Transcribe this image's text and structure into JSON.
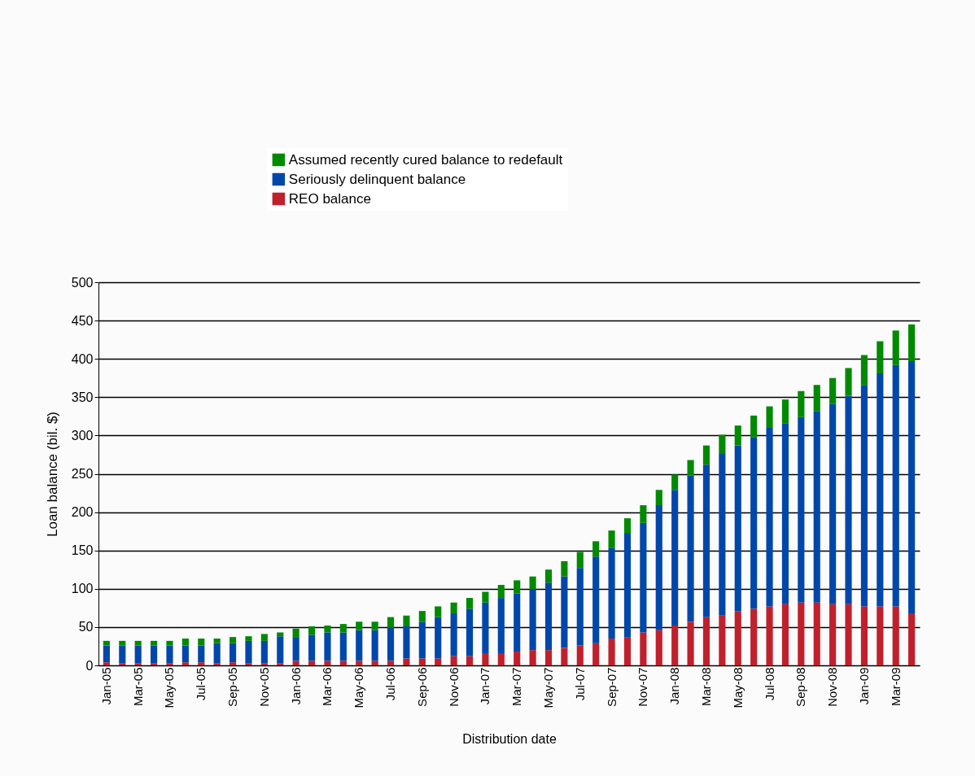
{
  "chart_data": {
    "type": "bar",
    "stacked": true,
    "xlabel": "Distribution date",
    "ylabel": "Loan balance (bil. $)",
    "categories": [
      "Jan-05",
      null,
      "Mar-05",
      null,
      "May-05",
      null,
      "Jul-05",
      null,
      "Sep-05",
      null,
      "Nov-05",
      null,
      "Jan-06",
      null,
      "Mar-06",
      null,
      "May-06",
      null,
      "Jul-06",
      null,
      "Sep-06",
      null,
      "Nov-06",
      null,
      "Jan-07",
      null,
      "Mar-07",
      null,
      "May-07",
      null,
      "Jul-07",
      null,
      "Sep-07",
      null,
      "Nov-07",
      null,
      "Jan-08",
      null,
      "Mar-08",
      null,
      "May-08",
      null,
      "Jul-08",
      null,
      "Sep-08",
      null,
      "Nov-08",
      null,
      "Jan-09",
      null,
      "Mar-09",
      null
    ],
    "series": [
      {
        "name": "REO balance",
        "color": "#c0202c",
        "values": [
          4,
          3,
          3,
          3,
          3,
          4,
          4,
          3,
          4,
          3,
          3,
          3,
          6,
          6,
          6,
          6,
          6,
          6,
          6,
          9,
          9,
          9,
          12,
          12,
          15,
          15,
          18,
          20,
          20,
          23,
          26,
          29,
          35,
          37,
          43,
          46,
          52,
          57,
          63,
          65,
          71,
          74,
          77,
          80,
          82,
          82,
          80,
          80,
          77,
          77,
          77,
          68
        ]
      },
      {
        "name": "Seriously delinquent balance",
        "color": "#0047ab",
        "values": [
          22,
          23,
          23,
          23,
          23,
          22,
          22,
          26,
          25,
          29,
          29,
          35,
          31,
          34,
          37,
          37,
          40,
          40,
          43,
          42,
          48,
          54,
          56,
          62,
          67,
          73,
          76,
          79,
          88,
          93,
          101,
          113,
          118,
          135,
          143,
          163,
          177,
          191,
          199,
          211,
          216,
          224,
          233,
          236,
          242,
          250,
          261,
          272,
          289,
          304,
          315,
          329
        ]
      },
      {
        "name": "Assumed recently cured balance to redefault",
        "color": "#008a00",
        "values": [
          6,
          6,
          6,
          6,
          6,
          9,
          9,
          6,
          8,
          6,
          9,
          5,
          11,
          11,
          9,
          11,
          11,
          11,
          14,
          14,
          14,
          14,
          14,
          14,
          14,
          17,
          17,
          17,
          17,
          20,
          21,
          20,
          23,
          20,
          23,
          20,
          20,
          20,
          25,
          25,
          26,
          28,
          28,
          31,
          34,
          34,
          34,
          36,
          39,
          42,
          45,
          48
        ]
      }
    ],
    "ylim": [
      0,
      500
    ],
    "yticks": [
      0,
      50,
      100,
      150,
      200,
      250,
      300,
      350,
      400,
      450,
      500
    ],
    "grid": "y",
    "legend": "top"
  }
}
